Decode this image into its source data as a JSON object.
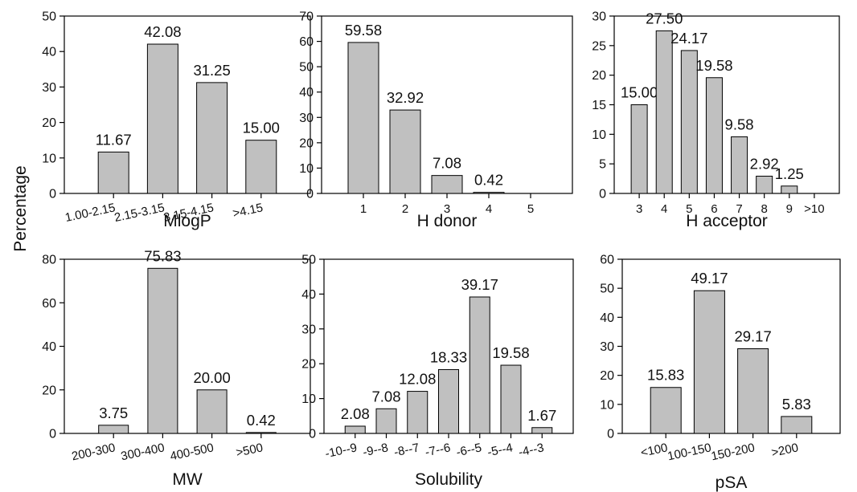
{
  "shared": {
    "ylabel": "Percentage",
    "bar_color": "#c0c0c0",
    "edge_color": "#000000"
  },
  "chart_data": [
    {
      "type": "bar",
      "xlabel": "MlogP",
      "ylim": [
        0,
        50
      ],
      "yticks": [
        0,
        10,
        20,
        30,
        40,
        50
      ],
      "categories": [
        "1.00-2.15",
        "2.15-3.15",
        "3.15-4.15",
        ">4.15"
      ],
      "values": [
        11.67,
        42.08,
        31.25,
        15.0
      ],
      "labels": [
        "11.67",
        "42.08",
        "31.25",
        "15.00"
      ],
      "rotated_ticks": true
    },
    {
      "type": "bar",
      "xlabel": "H donor",
      "ylim": [
        0,
        70
      ],
      "yticks": [
        0,
        10,
        20,
        30,
        40,
        50,
        60,
        70
      ],
      "categories": [
        "1",
        "2",
        "3",
        "4",
        "5"
      ],
      "values": [
        59.58,
        32.92,
        7.08,
        0.42,
        0
      ],
      "labels": [
        "59.58",
        "32.92",
        "7.08",
        "0.42",
        ""
      ],
      "rotated_ticks": false
    },
    {
      "type": "bar",
      "xlabel": "H acceptor",
      "ylim": [
        0,
        30
      ],
      "yticks": [
        0,
        5,
        10,
        15,
        20,
        25,
        30
      ],
      "categories": [
        "3",
        "4",
        "5",
        "6",
        "7",
        "8",
        "9",
        ">10"
      ],
      "values": [
        15.0,
        27.5,
        24.17,
        19.58,
        9.58,
        2.92,
        1.25,
        0
      ],
      "labels": [
        "15.00",
        "27.50",
        "24.17",
        "19.58",
        "9.58",
        "2.92",
        "1.25",
        ""
      ],
      "rotated_ticks": false
    },
    {
      "type": "bar",
      "xlabel": "MW",
      "ylim": [
        0,
        80
      ],
      "yticks": [
        0,
        20,
        40,
        60,
        80
      ],
      "categories": [
        "200-300",
        "300-400",
        "400-500",
        ">500"
      ],
      "values": [
        3.75,
        75.83,
        20.0,
        0.42
      ],
      "labels": [
        "3.75",
        "75.83",
        "20.00",
        "0.42"
      ],
      "rotated_ticks": true
    },
    {
      "type": "bar",
      "xlabel": "Solubility",
      "ylim": [
        0,
        50
      ],
      "yticks": [
        0,
        10,
        20,
        30,
        40,
        50
      ],
      "categories": [
        "-10--9",
        "-9--8",
        "-8--7",
        "-7--6",
        "-6--5",
        "-5--4",
        "-4--3"
      ],
      "values": [
        2.08,
        7.08,
        12.08,
        18.33,
        39.17,
        19.58,
        1.67
      ],
      "labels": [
        "2.08",
        "7.08",
        "12.08",
        "18.33",
        "39.17",
        "19.58",
        "1.67"
      ],
      "rotated_ticks": true
    },
    {
      "type": "bar",
      "xlabel": "pSA",
      "ylim": [
        0,
        60
      ],
      "yticks": [
        0,
        10,
        20,
        30,
        40,
        50,
        60
      ],
      "categories": [
        "<100",
        "100-150",
        "150-200",
        ">200"
      ],
      "values": [
        15.83,
        49.17,
        29.17,
        5.83
      ],
      "labels": [
        "15.83",
        "49.17",
        "29.17",
        "5.83"
      ],
      "rotated_ticks": true
    }
  ]
}
